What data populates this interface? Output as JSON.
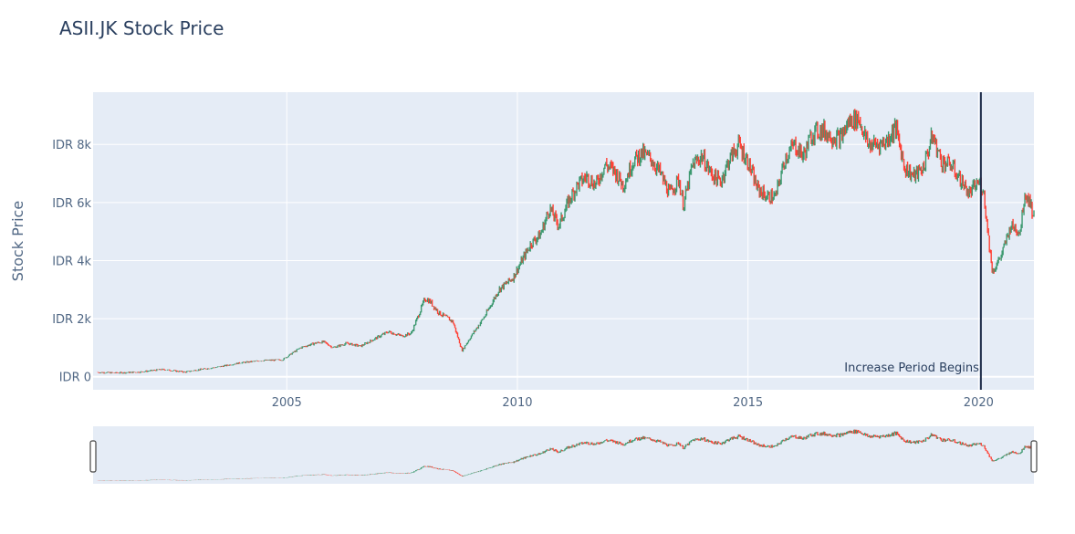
{
  "chart_data": {
    "type": "candlestick",
    "title": "ASII.JK Stock Price",
    "ylabel": "Stock Price",
    "xlabel": "",
    "y_tick_labels": [
      "IDR 0",
      "IDR 2k",
      "IDR 4k",
      "IDR 6k",
      "IDR 8k"
    ],
    "y_ticks": [
      0,
      2000,
      4000,
      6000,
      8000
    ],
    "x_tick_labels": [
      "2005",
      "2010",
      "2015",
      "2020"
    ],
    "x_ticks": [
      2005,
      2010,
      2015,
      2020
    ],
    "xlim": [
      2000.8,
      2021.2
    ],
    "ylim": [
      -450,
      9800
    ],
    "increasing_color": "#3d9970",
    "decreasing_color": "#ff4136",
    "plot_bgcolor": "#e5ecf6",
    "grid": true,
    "rangeslider": true,
    "annotation": {
      "text": "Increase Period Begins",
      "x": 2020.05
    },
    "vline": {
      "x": 2020.05,
      "color": "#1f2d4a"
    },
    "series": [
      {
        "x": [
          2000.9,
          2001.3,
          2001.8,
          2002.3,
          2002.8,
          2003.0,
          2003.5,
          2004.0,
          2004.5,
          2004.9,
          2005.3,
          2005.6,
          2005.8,
          2006.0,
          2006.3,
          2006.6,
          2006.9,
          2007.2,
          2007.5,
          2007.7,
          2008.0,
          2008.1,
          2008.3,
          2008.6,
          2008.8,
          2009.0,
          2009.3,
          2009.6,
          2009.9,
          2010.1,
          2010.3,
          2010.5,
          2010.7,
          2010.9,
          2011.1,
          2011.3,
          2011.5,
          2011.7,
          2011.9,
          2012.1,
          2012.3,
          2012.5,
          2012.7,
          2012.9,
          2013.1,
          2013.3,
          2013.5,
          2013.6,
          2013.8,
          2014.0,
          2014.2,
          2014.4,
          2014.6,
          2014.8,
          2015.0,
          2015.2,
          2015.4,
          2015.6,
          2015.8,
          2016.0,
          2016.2,
          2016.4,
          2016.6,
          2016.8,
          2017.0,
          2017.2,
          2017.4,
          2017.6,
          2017.8,
          2018.0,
          2018.2,
          2018.4,
          2018.6,
          2018.8,
          2019.0,
          2019.2,
          2019.4,
          2019.6,
          2019.8,
          2020.0,
          2020.1,
          2020.2,
          2020.3,
          2020.5,
          2020.7,
          2020.9,
          2021.0,
          2021.1,
          2021.2
        ],
        "y": [
          150,
          130,
          160,
          250,
          160,
          220,
          330,
          480,
          560,
          580,
          1000,
          1150,
          1200,
          1000,
          1150,
          1050,
          1300,
          1550,
          1400,
          1500,
          2700,
          2600,
          2200,
          1900,
          900,
          1400,
          2100,
          3000,
          3400,
          4000,
          4600,
          4900,
          5800,
          5200,
          6000,
          6600,
          6900,
          6600,
          7300,
          7100,
          6600,
          7400,
          7700,
          7500,
          7000,
          6300,
          6800,
          5900,
          7300,
          7600,
          7000,
          6700,
          7500,
          8000,
          7400,
          6500,
          6200,
          6200,
          7500,
          8000,
          7600,
          8400,
          8500,
          8300,
          8200,
          8800,
          8900,
          8000,
          8000,
          8100,
          8600,
          7200,
          6900,
          7200,
          8300,
          7400,
          7300,
          6800,
          6300,
          6700,
          6500,
          5000,
          3600,
          4200,
          5200,
          5000,
          6300,
          6100,
          5500
        ]
      }
    ]
  }
}
